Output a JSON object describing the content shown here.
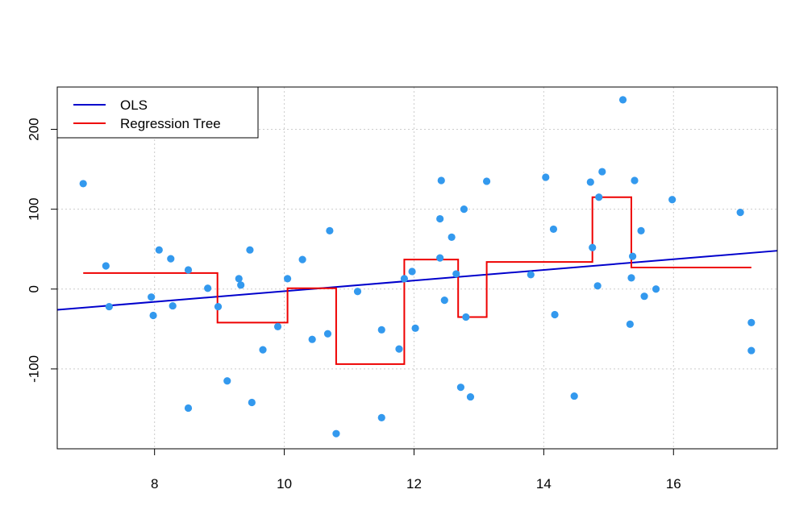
{
  "chart_data": {
    "type": "scatter",
    "title": "",
    "xlabel": "",
    "ylabel": "",
    "xlim": [
      6.5,
      17.6
    ],
    "ylim": [
      -200,
      253
    ],
    "xticks": [
      8,
      10,
      12,
      14,
      16
    ],
    "yticks": [
      -100,
      0,
      100,
      200
    ],
    "grid": true,
    "legend_position": "top-left",
    "colors": {
      "points": "#3399ee",
      "ols": "#0000cc",
      "tree": "#ee0000",
      "grid": "#cccccc"
    },
    "points": [
      [
        6.9,
        132
      ],
      [
        7.25,
        29
      ],
      [
        7.3,
        -22
      ],
      [
        7.95,
        -10
      ],
      [
        7.98,
        -33
      ],
      [
        8.07,
        49
      ],
      [
        8.25,
        38
      ],
      [
        8.28,
        -21
      ],
      [
        8.52,
        24
      ],
      [
        8.52,
        -149
      ],
      [
        8.82,
        1
      ],
      [
        8.98,
        -22
      ],
      [
        9.12,
        -115
      ],
      [
        9.3,
        13
      ],
      [
        9.33,
        5
      ],
      [
        9.47,
        49
      ],
      [
        9.5,
        -142
      ],
      [
        9.67,
        -76
      ],
      [
        9.9,
        -47
      ],
      [
        10.05,
        13
      ],
      [
        10.28,
        37
      ],
      [
        10.43,
        -63
      ],
      [
        10.67,
        -56
      ],
      [
        10.7,
        73
      ],
      [
        10.8,
        -181
      ],
      [
        11.13,
        -3
      ],
      [
        11.5,
        -161
      ],
      [
        11.5,
        -51
      ],
      [
        11.77,
        -75
      ],
      [
        11.85,
        13
      ],
      [
        11.97,
        22
      ],
      [
        12.02,
        -49
      ],
      [
        12.4,
        39
      ],
      [
        12.4,
        88
      ],
      [
        12.42,
        136
      ],
      [
        12.47,
        -14
      ],
      [
        12.58,
        65
      ],
      [
        12.65,
        19
      ],
      [
        12.72,
        -123
      ],
      [
        12.77,
        100
      ],
      [
        12.8,
        -35
      ],
      [
        12.87,
        -135
      ],
      [
        13.12,
        135
      ],
      [
        13.8,
        18
      ],
      [
        14.03,
        140
      ],
      [
        14.15,
        75
      ],
      [
        14.17,
        -32
      ],
      [
        14.47,
        -134
      ],
      [
        14.72,
        134
      ],
      [
        14.75,
        52
      ],
      [
        14.83,
        4
      ],
      [
        14.85,
        115
      ],
      [
        14.9,
        147
      ],
      [
        15.22,
        237
      ],
      [
        15.33,
        -44
      ],
      [
        15.35,
        14
      ],
      [
        15.37,
        41
      ],
      [
        15.4,
        136
      ],
      [
        15.5,
        73
      ],
      [
        15.55,
        -9
      ],
      [
        15.73,
        0
      ],
      [
        15.98,
        112
      ],
      [
        17.03,
        96
      ],
      [
        17.2,
        -42
      ],
      [
        17.2,
        -77
      ]
    ],
    "series": [
      {
        "name": "OLS",
        "type": "line",
        "x": [
          6.5,
          17.6
        ],
        "y": [
          -26,
          48
        ]
      },
      {
        "name": "Regression Tree",
        "type": "step",
        "segments": [
          [
            6.9,
            8.97,
            20
          ],
          [
            8.97,
            10.05,
            -42
          ],
          [
            10.05,
            10.8,
            1
          ],
          [
            10.8,
            11.85,
            -94
          ],
          [
            11.85,
            12.68,
            37
          ],
          [
            12.68,
            13.12,
            -35
          ],
          [
            13.12,
            14.75,
            34
          ],
          [
            14.75,
            15.35,
            115
          ],
          [
            15.35,
            17.2,
            27
          ]
        ]
      }
    ]
  }
}
